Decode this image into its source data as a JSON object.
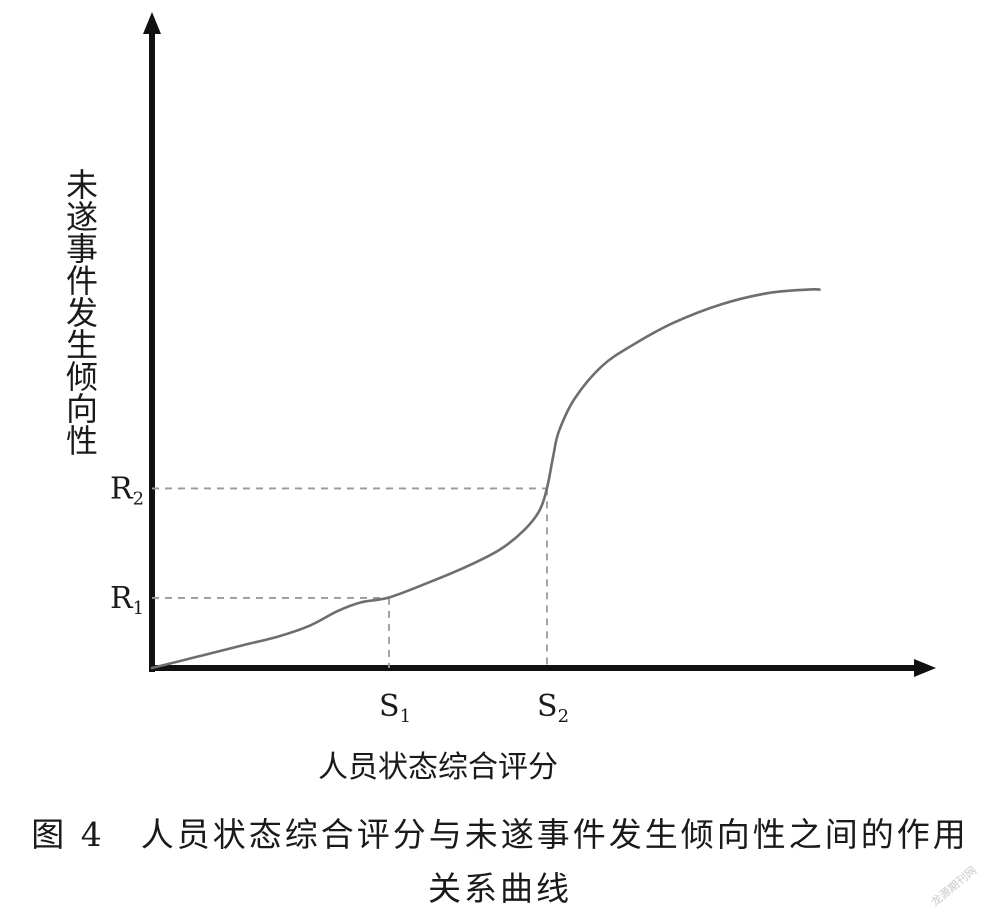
{
  "chart_data": {
    "type": "line",
    "xlabel": "人员状态综合评分",
    "ylabel": "未遂事件发生倾向性",
    "x_ticks": [
      {
        "name": "S",
        "sub": "1",
        "x": 0.3
      },
      {
        "name": "S",
        "sub": "2",
        "x": 0.5
      }
    ],
    "y_ticks": [
      {
        "name": "R",
        "sub": "1",
        "y": 0.16
      },
      {
        "name": "R",
        "sub": "2",
        "y": 0.41
      }
    ],
    "xlim": [
      0,
      1
    ],
    "ylim": [
      0,
      1
    ],
    "grid": false,
    "series": [
      {
        "x": [
          0.0,
          0.06,
          0.115,
          0.16,
          0.2,
          0.235,
          0.265,
          0.3,
          0.35,
          0.4,
          0.44,
          0.47,
          0.49,
          0.5,
          0.508,
          0.515,
          0.535,
          0.57,
          0.61,
          0.66,
          0.72,
          0.78,
          0.83,
          0.845
        ],
        "y": [
          0.0,
          0.027,
          0.052,
          0.072,
          0.097,
          0.13,
          0.15,
          0.161,
          0.195,
          0.233,
          0.27,
          0.313,
          0.358,
          0.411,
          0.485,
          0.54,
          0.615,
          0.69,
          0.739,
          0.788,
          0.83,
          0.856,
          0.864,
          0.864
        ]
      }
    ]
  },
  "caption": {
    "line1": "图 4　人员状态综合评分与未遂事件发生倾向性之间的作用",
    "line2": "关系曲线"
  },
  "watermark": "龙源期刊网"
}
